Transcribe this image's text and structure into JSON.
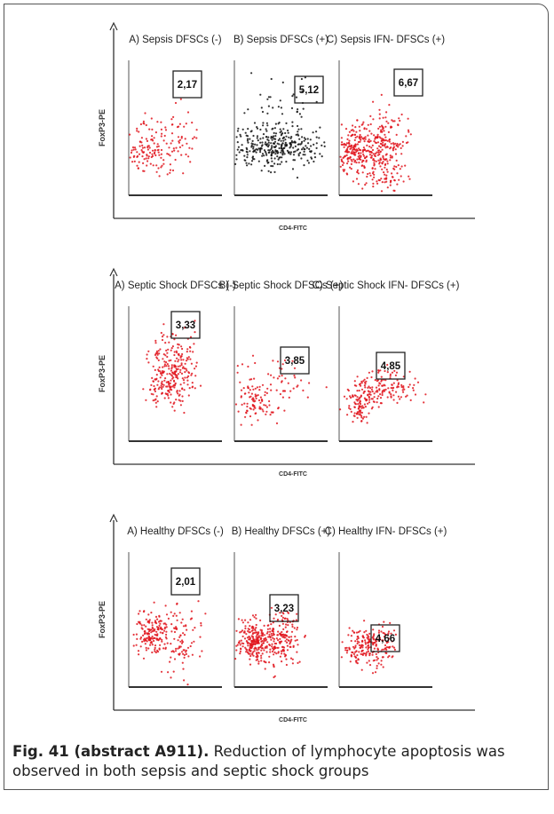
{
  "figure": {
    "groups": [
      {
        "y_label": "FoxP3-PE",
        "x_label": "CD4-FITC",
        "panels": [
          {
            "title": "A) Sepsis DFSCs (-)",
            "gate": "2,17"
          },
          {
            "title": "B) Sepsis DFSCs (+)",
            "gate": "5,12"
          },
          {
            "title": "C) Sepsis IFN- DFSCs (+)",
            "gate": "6,67"
          }
        ]
      },
      {
        "y_label": "FoxP3-PE",
        "x_label": "CD4-FITC",
        "panels": [
          {
            "title": "A) Septic Shock DFSCs (-)",
            "gate": "3,33"
          },
          {
            "title": "B) Septic Shock DFSCs (+)",
            "gate": "3,85"
          },
          {
            "title": "C) Septic Shock IFN- DFSCs (+)",
            "gate": "4,85"
          }
        ]
      },
      {
        "y_label": "FoxP3-PE",
        "x_label": "CD4-FITC",
        "panels": [
          {
            "title": "A) Healthy DFSCs (-)",
            "gate": "2,01"
          },
          {
            "title": "B) Healthy DFSCs (+)",
            "gate": "3,23"
          },
          {
            "title": "C) Healthy IFN- DFSCs (+)",
            "gate": "4,66"
          }
        ]
      }
    ]
  },
  "caption": {
    "label": "Fig. 41 (abstract A911).",
    "text": "Reduction of lymphocyte apoptosis was observed in both sepsis and septic shock groups"
  }
}
